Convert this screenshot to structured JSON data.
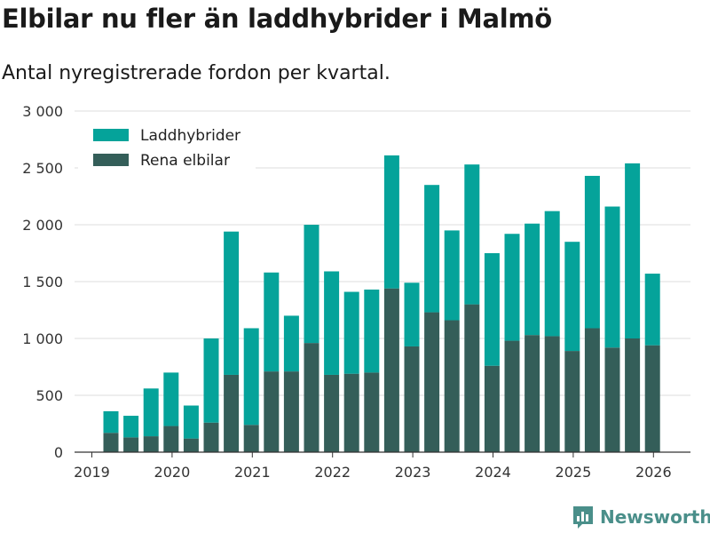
{
  "title": "Elbilar nu fler än laddhybrider i Malmö",
  "subtitle": "Antal nyregistrerade fordon per kvartal.",
  "brand": {
    "name": "Newsworthy",
    "logo_icon": "bar-chart-logo-icon"
  },
  "colors": {
    "laddhybrider": "#05a39a",
    "rena_elbilar": "#345e59",
    "grid": "#dddddd"
  },
  "chart_data": {
    "type": "bar",
    "stacked": true,
    "title": "Elbilar nu fler än laddhybrider i Malmö",
    "subtitle": "Antal nyregistrerade fordon per kvartal.",
    "xlabel": "",
    "ylabel": "",
    "ylim": [
      0,
      3000
    ],
    "yticks": [
      0,
      500,
      1000,
      1500,
      2000,
      2500,
      3000
    ],
    "ytick_labels": [
      "0",
      "500",
      "1 000",
      "1 500",
      "2 000",
      "2 500",
      "3 000"
    ],
    "xticks": [
      "2019",
      "2020",
      "2021",
      "2022",
      "2023",
      "2024",
      "2025",
      "2026"
    ],
    "categories": [
      "2019 Q2",
      "2019 Q3",
      "2019 Q4",
      "2020 Q1",
      "2020 Q2",
      "2020 Q3",
      "2020 Q4",
      "2021 Q1",
      "2021 Q2",
      "2021 Q3",
      "2021 Q4",
      "2022 Q1",
      "2022 Q2",
      "2022 Q3",
      "2022 Q4",
      "2023 Q1",
      "2023 Q2",
      "2023 Q3",
      "2023 Q4",
      "2024 Q1",
      "2024 Q2",
      "2024 Q3",
      "2024 Q4",
      "2025 Q1",
      "2025 Q2",
      "2025 Q3",
      "2025 Q4",
      "2026 Q1"
    ],
    "legend": [
      "Laddhybrider",
      "Rena elbilar"
    ],
    "legend_position": "top-left",
    "grid": true,
    "series": [
      {
        "name": "Rena elbilar",
        "values": [
          170,
          130,
          140,
          230,
          120,
          260,
          680,
          240,
          710,
          710,
          960,
          680,
          690,
          700,
          1440,
          930,
          1230,
          1160,
          1300,
          760,
          980,
          1030,
          1020,
          890,
          1090,
          920,
          1000,
          940
        ]
      },
      {
        "name": "Laddhybrider",
        "values": [
          190,
          190,
          420,
          470,
          290,
          740,
          1260,
          850,
          870,
          490,
          1040,
          910,
          720,
          730,
          1170,
          560,
          1120,
          790,
          1230,
          990,
          940,
          980,
          1100,
          960,
          1340,
          1240,
          1540,
          630
        ]
      }
    ]
  }
}
